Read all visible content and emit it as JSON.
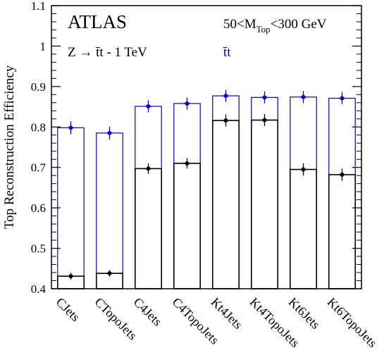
{
  "chart_data": {
    "type": "bar",
    "title": "",
    "experiment_label": "ATLAS",
    "process_label": "Z → t̄t - 1 TeV",
    "mass_window_label": {
      "prefix": "50<M",
      "subscript": "Top",
      "suffix": "<300 GeV"
    },
    "series_tag": "t̄t",
    "xlabel": "",
    "ylabel": "Top Reconstruction Efficiency",
    "ylim": [
      0.4,
      1.1
    ],
    "yticks": [
      "0.4",
      "0.5",
      "0.6",
      "0.7",
      "0.8",
      "0.9",
      "1",
      "1.1"
    ],
    "grid": false,
    "categories": [
      "CJets",
      "CTopoJets",
      "C4Jets",
      "C4TopoJets",
      "Kt4Jets",
      "Kt4TopoJets",
      "Kt6Jets",
      "Kt6TopoJets"
    ],
    "series": [
      {
        "name": "t̄t",
        "color": "#0000cc",
        "values": [
          0.798,
          0.785,
          0.851,
          0.858,
          0.877,
          0.873,
          0.874,
          0.871
        ],
        "errors": [
          0.016,
          0.016,
          0.015,
          0.015,
          0.015,
          0.015,
          0.015,
          0.015
        ]
      },
      {
        "name": "",
        "color": "#000000",
        "values": [
          0.431,
          0.438,
          0.697,
          0.71,
          0.816,
          0.817,
          0.695,
          0.682
        ],
        "errors": [
          0.008,
          0.008,
          0.013,
          0.013,
          0.015,
          0.015,
          0.015,
          0.015
        ]
      }
    ]
  }
}
